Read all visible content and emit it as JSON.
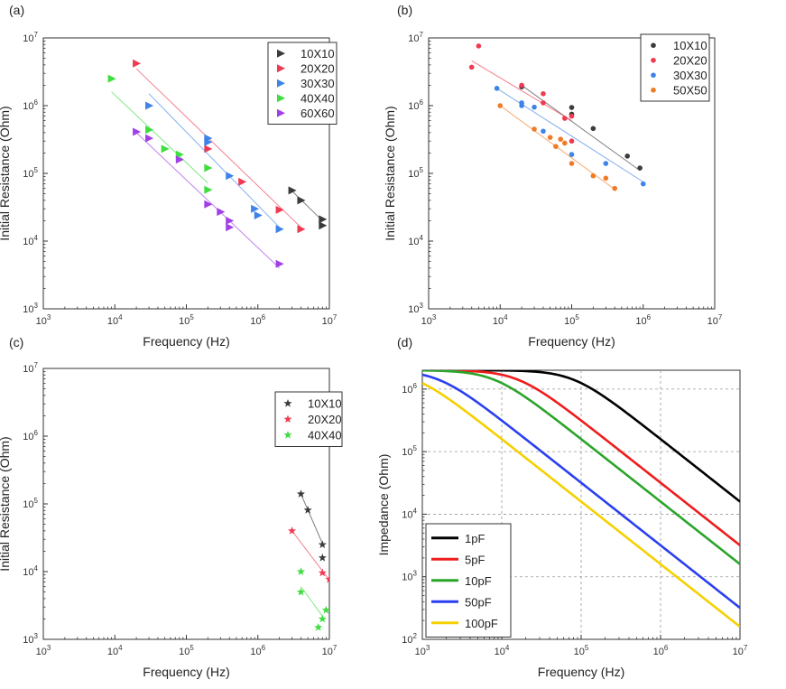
{
  "colors": {
    "s10": "#3b3b3b",
    "s20": "#ef3a52",
    "s30": "#3d83e8",
    "s40": "#3fdd3f",
    "s60": "#a040e6",
    "s50": "#f07a26",
    "d1pF": "#000000",
    "d5pF": "#ee1c1c",
    "d10pF": "#2aa52a",
    "d50pF": "#2a3ff0",
    "d100pF": "#f5d000"
  },
  "chart_data": [
    {
      "panel": "(a)",
      "type": "scatter",
      "marker": "triangle",
      "xlabel": "Frequency (Hz)",
      "ylabel": "Initial Resistance (Ohm)",
      "xlim": [
        1000,
        10000000
      ],
      "ylim": [
        1000,
        10000000
      ],
      "xscale": "log",
      "yscale": "log",
      "legend_position": "top-right",
      "series": [
        {
          "name": "10X10",
          "color_key": "s10",
          "points": [
            [
              3000000,
              56000
            ],
            [
              4000000,
              40000
            ],
            [
              8000000,
              21000
            ],
            [
              8000000,
              17000
            ]
          ],
          "fit": [
            [
              3000000,
              55000
            ],
            [
              8000000,
              20000
            ]
          ]
        },
        {
          "name": "20X20",
          "color_key": "s20",
          "points": [
            [
              20000,
              4200000
            ],
            [
              200000,
              230000
            ],
            [
              600000,
              75000
            ],
            [
              2000000,
              29000
            ],
            [
              4000000,
              15000
            ]
          ],
          "fit": [
            [
              20000,
              3500000
            ],
            [
              4000000,
              16000
            ]
          ]
        },
        {
          "name": "30X30",
          "color_key": "s30",
          "points": [
            [
              30000,
              1000000
            ],
            [
              200000,
              330000
            ],
            [
              200000,
              290000
            ],
            [
              400000,
              92000
            ],
            [
              900000,
              30000
            ],
            [
              1000000,
              24000
            ],
            [
              2000000,
              15000
            ]
          ],
          "fit": [
            [
              30000,
              1500000
            ],
            [
              2000000,
              16000
            ]
          ]
        },
        {
          "name": "40X40",
          "color_key": "s40",
          "points": [
            [
              9000,
              2500000
            ],
            [
              30000,
              440000
            ],
            [
              50000,
              230000
            ],
            [
              80000,
              190000
            ],
            [
              200000,
              120000
            ],
            [
              200000,
              57000
            ]
          ],
          "fit": [
            [
              9000,
              1600000
            ],
            [
              200000,
              72000
            ]
          ]
        },
        {
          "name": "60X60",
          "color_key": "s60",
          "points": [
            [
              20000,
              410000
            ],
            [
              30000,
              330000
            ],
            [
              80000,
              160000
            ],
            [
              200000,
              35000
            ],
            [
              300000,
              27000
            ],
            [
              400000,
              20000
            ],
            [
              400000,
              16000
            ],
            [
              2000000,
              4600
            ]
          ],
          "fit": [
            [
              20000,
              400000
            ],
            [
              2000000,
              4000
            ]
          ]
        }
      ]
    },
    {
      "panel": "(b)",
      "type": "scatter",
      "marker": "circle",
      "xlabel": "Frequency (Hz)",
      "ylabel": "Initial Resistance (Ohm)",
      "xlim": [
        1000,
        10000000
      ],
      "ylim": [
        1000,
        10000000
      ],
      "xscale": "log",
      "yscale": "log",
      "legend_position": "top-right",
      "series": [
        {
          "name": "10X10",
          "color_key": "s10",
          "points": [
            [
              20000,
              1900000
            ],
            [
              100000,
              940000
            ],
            [
              100000,
              750000
            ],
            [
              200000,
              460000
            ],
            [
              600000,
              180000
            ],
            [
              900000,
              120000
            ]
          ],
          "fit": [
            [
              20000,
              2000000
            ],
            [
              900000,
              110000
            ]
          ]
        },
        {
          "name": "20X20",
          "color_key": "s20",
          "points": [
            [
              4000,
              3700000
            ],
            [
              5000,
              7600000
            ],
            [
              20000,
              2000000
            ],
            [
              40000,
              1500000
            ],
            [
              40000,
              1100000
            ],
            [
              80000,
              650000
            ],
            [
              100000,
              300000
            ],
            [
              100000,
              700000
            ]
          ],
          "fit": [
            [
              4000,
              4600000
            ],
            [
              100000,
              600000
            ]
          ]
        },
        {
          "name": "30X30",
          "color_key": "s30",
          "points": [
            [
              9000,
              1800000
            ],
            [
              20000,
              1100000
            ],
            [
              20000,
              1000000
            ],
            [
              30000,
              950000
            ],
            [
              40000,
              420000
            ],
            [
              100000,
              190000
            ],
            [
              300000,
              140000
            ],
            [
              1000000,
              70000
            ]
          ],
          "fit": [
            [
              9000,
              1800000
            ],
            [
              1000000,
              75000
            ]
          ]
        },
        {
          "name": "50X50",
          "color_key": "s50",
          "points": [
            [
              10000,
              1000000
            ],
            [
              30000,
              450000
            ],
            [
              50000,
              340000
            ],
            [
              60000,
              250000
            ],
            [
              70000,
              320000
            ],
            [
              80000,
              280000
            ],
            [
              100000,
              140000
            ],
            [
              200000,
              92000
            ],
            [
              300000,
              85000
            ],
            [
              400000,
              60000
            ]
          ],
          "fit": [
            [
              10000,
              1000000
            ],
            [
              400000,
              58000
            ]
          ]
        }
      ]
    },
    {
      "panel": "(c)",
      "type": "scatter",
      "marker": "star",
      "xlabel": "Frequency (Hz)",
      "ylabel": "Initial Resistance (Ohm)",
      "xlim": [
        1000,
        10000000
      ],
      "ylim": [
        1000,
        10000000
      ],
      "xscale": "log",
      "yscale": "log",
      "legend_position": "top-right",
      "series": [
        {
          "name": "10X10",
          "color_key": "s10",
          "points": [
            [
              4000000,
              140000
            ],
            [
              5000000,
              81000
            ],
            [
              8000000,
              25000
            ],
            [
              8000000,
              16000
            ]
          ],
          "fit": [
            [
              4000000,
              140000
            ],
            [
              8000000,
              26000
            ]
          ]
        },
        {
          "name": "20X20",
          "color_key": "s20",
          "points": [
            [
              3000000,
              40000
            ],
            [
              8000000,
              9600.0
            ],
            [
              10000000,
              7700
            ]
          ],
          "fit": [
            [
              3000000,
              40000
            ],
            [
              10000000,
              7500
            ]
          ]
        },
        {
          "name": "40X40",
          "color_key": "s40",
          "points": [
            [
              4000000,
              10000
            ],
            [
              4000000,
              5000
            ],
            [
              7000000,
              1500
            ],
            [
              8000000,
              2000
            ],
            [
              9000000,
              2700
            ]
          ],
          "fit": [
            [
              4000000,
              6000
            ],
            [
              8000000,
              2200
            ]
          ]
        }
      ]
    },
    {
      "panel": "(d)",
      "type": "line",
      "xlabel": "Frequency (Hz)",
      "ylabel": "Impedance (Ohm)",
      "xlim": [
        1000,
        10000000
      ],
      "ylim": [
        100,
        2000000
      ],
      "xscale": "log",
      "yscale": "log",
      "grid": true,
      "legend_position": "bottom-left",
      "model": "|Z| = R / sqrt(1 + (2*pi*f*R*C)^2), R = 2e6 Ohm",
      "R": 2000000,
      "series": [
        {
          "name": "1pF",
          "color_key": "d1pF",
          "C": 1e-12
        },
        {
          "name": "5pF",
          "color_key": "d5pF",
          "C": 5e-12
        },
        {
          "name": "10pF",
          "color_key": "d10pF",
          "C": 1e-11
        },
        {
          "name": "50pF",
          "color_key": "d50pF",
          "C": 5e-11
        },
        {
          "name": "100pF",
          "color_key": "d100pF",
          "C": 1e-10
        }
      ]
    }
  ]
}
